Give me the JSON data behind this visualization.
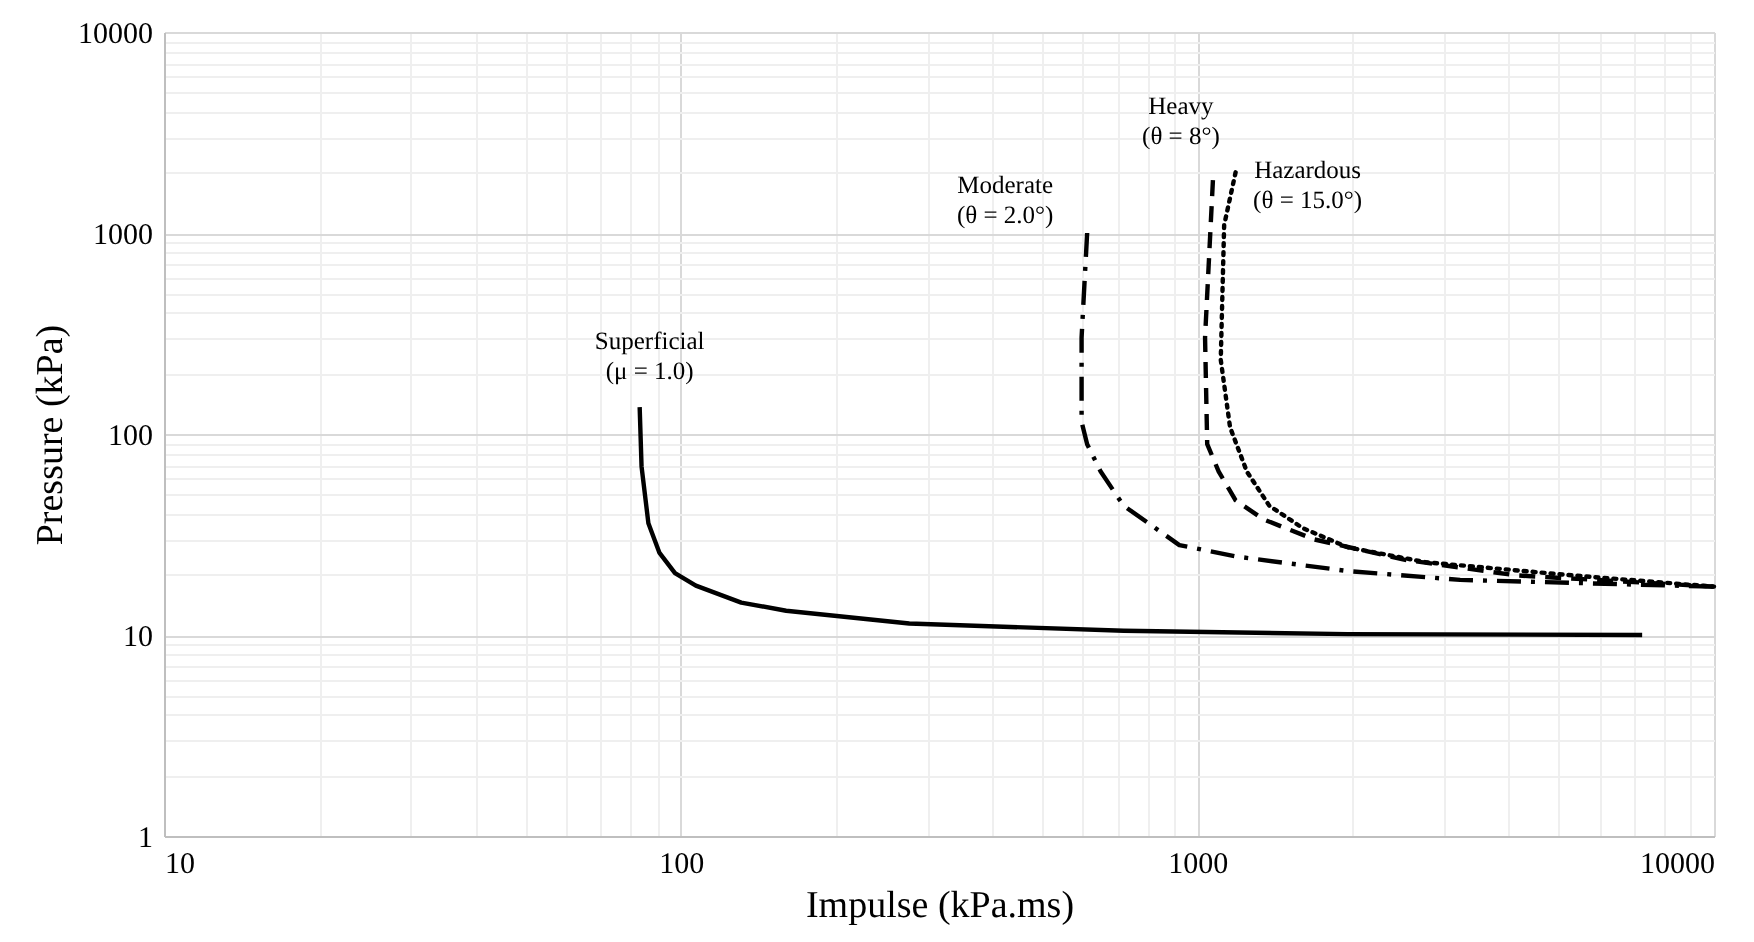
{
  "chart_data": {
    "type": "line",
    "xlabel": "Impulse (kPa.ms)",
    "ylabel": "Pressure (kPa)",
    "log": "xy",
    "grid": true,
    "xlim": [
      10,
      10000
    ],
    "ylim": [
      1,
      10000
    ],
    "xticks": [
      10,
      100,
      1000,
      10000
    ],
    "yticks": [
      1,
      10,
      100,
      1000,
      10000
    ],
    "series": [
      {
        "name": "Superficial\n(μ = 1.0)",
        "color": "#000000",
        "line_style": "solid",
        "x": [
          83.3,
          84,
          86.6,
          91,
          97.5,
          107,
          131,
          160,
          277,
          720,
          1955,
          7260
        ],
        "values": [
          136,
          69,
          36,
          25.6,
          20.3,
          17.6,
          14.5,
          13.2,
          11.4,
          10.5,
          10.1,
          10
        ]
      },
      {
        "name": "Moderate\n(θ = 2.0°)",
        "color": "#000000",
        "line_style": "dashdot",
        "x": [
          612,
          597,
          597,
          612,
          650,
          720,
          923,
          1186,
          1955,
          3226,
          10000
        ],
        "values": [
          1000,
          302,
          115,
          89,
          65,
          44,
          28,
          24.6,
          20.8,
          18.8,
          17.4
        ]
      },
      {
        "name": "Heavy\n(θ = 8°)",
        "color": "#000000",
        "line_style": "dashed",
        "x": [
          1072,
          1035,
          1045,
          1100,
          1186,
          1343,
          1683,
          2512,
          4140,
          10000
        ],
        "values": [
          1832,
          302,
          89,
          65,
          46.8,
          37.6,
          29.9,
          23.7,
          19.8,
          17.4
        ]
      },
      {
        "name": "Hazardous\n(θ = 15.0°)",
        "color": "#000000",
        "line_style": "dotted",
        "x": [
          1186,
          1127,
          1110,
          1157,
          1247,
          1378,
          1600,
          1955,
          2773,
          5320,
          10000
        ],
        "values": [
          2004,
          1095,
          234,
          108,
          65,
          44,
          34,
          27.3,
          23,
          19.8,
          17.4
        ]
      }
    ]
  }
}
